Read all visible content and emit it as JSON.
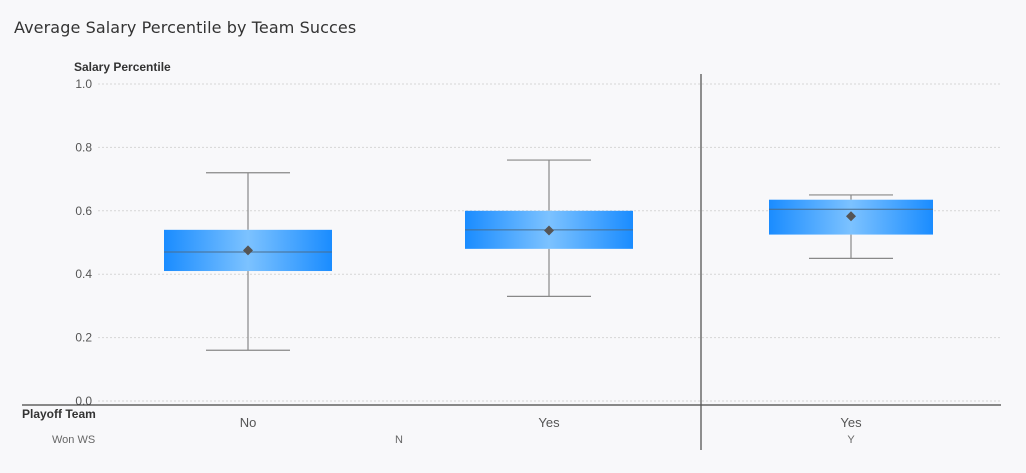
{
  "chart_data": {
    "type": "box",
    "title": "Average Salary Percentile by Team Succes",
    "ylabel": "Salary Percentile",
    "xlabel": "Playoff Team",
    "outer_label": "Won WS",
    "ylim": [
      0,
      1.0
    ],
    "yticks": [
      "0.0",
      "0.2",
      "0.4",
      "0.6",
      "0.8",
      "1.0"
    ],
    "grid": true,
    "groups": [
      {
        "outer": "N",
        "boxes": [
          {
            "category": "No",
            "min": 0.16,
            "q1": 0.41,
            "median": 0.47,
            "q3": 0.54,
            "max": 0.72,
            "mean": 0.475
          },
          {
            "category": "Yes",
            "min": 0.33,
            "q1": 0.48,
            "median": 0.54,
            "q3": 0.6,
            "max": 0.76,
            "mean": 0.538
          }
        ]
      },
      {
        "outer": "Y",
        "boxes": [
          {
            "category": "Yes",
            "min": 0.45,
            "q1": 0.525,
            "median": 0.605,
            "q3": 0.635,
            "max": 0.65,
            "mean": 0.583
          }
        ]
      }
    ]
  },
  "colors": {
    "box_edge": "#1a8cff",
    "box_center": "#7cc2ff",
    "whisker": "#888888",
    "mean_marker": "#555555",
    "grid": "#d6d6d6"
  }
}
